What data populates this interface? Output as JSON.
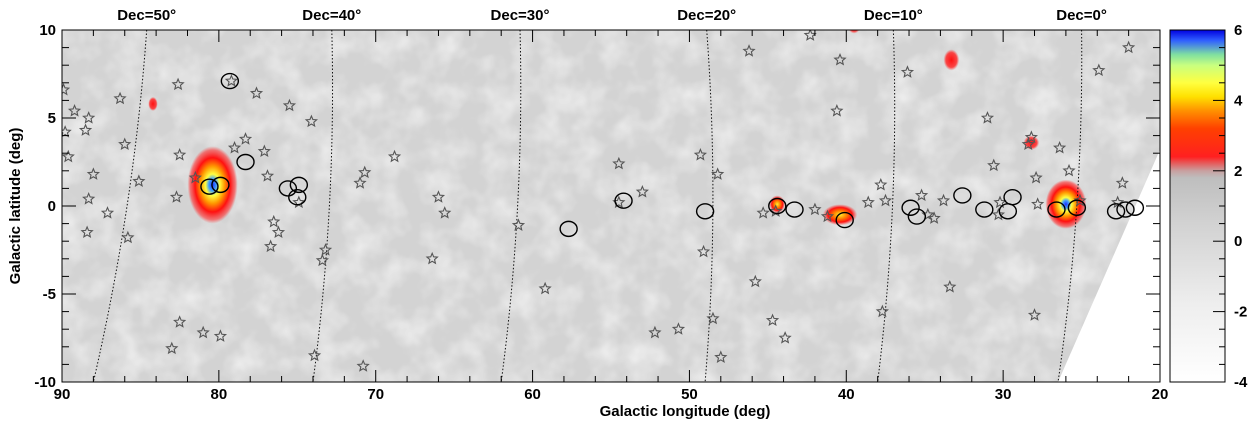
{
  "chart_data": {
    "type": "heatmap",
    "title": "",
    "xlabel": "Galactic longitude (deg)",
    "ylabel": "Galactic latitude (deg)",
    "xlim": [
      90,
      20
    ],
    "ylim": [
      -10,
      10
    ],
    "x_ticks": [
      90,
      80,
      70,
      60,
      50,
      40,
      30,
      20
    ],
    "y_ticks": [
      -10,
      -5,
      0,
      5,
      10
    ],
    "x_tick_labels": [
      "90",
      "80",
      "70",
      "60",
      "50",
      "40",
      "30",
      "20"
    ],
    "y_tick_labels": [
      "-10",
      "-5",
      "0",
      "5",
      "10"
    ],
    "dec_lines": [
      {
        "label": "Dec=50°",
        "l_top": 84.6,
        "l_bottom": 88.0
      },
      {
        "label": "Dec=40°",
        "l_top": 72.8,
        "l_bottom": 74.0
      },
      {
        "label": "Dec=30°",
        "l_top": 60.8,
        "l_bottom": 62.0
      },
      {
        "label": "Dec=20°",
        "l_top": 48.9,
        "l_bottom": 49.0
      },
      {
        "label": "Dec=10°",
        "l_top": 37.0,
        "l_bottom": 38.0
      },
      {
        "label": "Dec=0°",
        "l_top": 25.0,
        "l_bottom": 26.5
      }
    ],
    "dec_labels_at_l": [
      84.6,
      72.8,
      60.8,
      48.9,
      37.0,
      25.0
    ],
    "colorbar": {
      "ticks": [
        -4,
        -2,
        0,
        2,
        4,
        6
      ],
      "tick_labels": [
        "-4",
        "-2",
        "0",
        "2",
        "4",
        "6"
      ],
      "range": [
        -4,
        6
      ]
    },
    "hot_regions": [
      {
        "l": 80.4,
        "b": 1.2,
        "sigma": 5.8,
        "rl": 1.6,
        "rb": 2.2
      },
      {
        "l": 26.0,
        "b": 0.1,
        "sigma": 5.8,
        "rl": 1.3,
        "rb": 1.4
      },
      {
        "l": 40.4,
        "b": -0.5,
        "sigma": 3.8,
        "rl": 1.1,
        "rb": 0.6
      },
      {
        "l": 44.4,
        "b": 0.1,
        "sigma": 3.4,
        "rl": 0.5,
        "rb": 0.5
      },
      {
        "l": 39.5,
        "b": 10.2,
        "sigma": 3.2,
        "rl": 0.4,
        "rb": 0.4
      },
      {
        "l": 33.3,
        "b": 8.3,
        "sigma": 2.8,
        "rl": 0.5,
        "rb": 0.6
      },
      {
        "l": 84.2,
        "b": 5.8,
        "sigma": 2.6,
        "rl": 0.3,
        "rb": 0.4
      },
      {
        "l": 28.2,
        "b": 3.6,
        "sigma": 2.6,
        "rl": 0.5,
        "rb": 0.4
      }
    ],
    "circle_sources": [
      {
        "l": 79.3,
        "b": 7.1
      },
      {
        "l": 78.3,
        "b": 2.5
      },
      {
        "l": 80.6,
        "b": 1.1
      },
      {
        "l": 79.9,
        "b": 1.2
      },
      {
        "l": 75.6,
        "b": 1.0
      },
      {
        "l": 74.9,
        "b": 1.2
      },
      {
        "l": 75.0,
        "b": 0.5
      },
      {
        "l": 57.7,
        "b": -1.3
      },
      {
        "l": 54.2,
        "b": 0.3
      },
      {
        "l": 49.0,
        "b": -0.3
      },
      {
        "l": 44.4,
        "b": 0.0
      },
      {
        "l": 43.3,
        "b": -0.2
      },
      {
        "l": 40.1,
        "b": -0.8
      },
      {
        "l": 35.9,
        "b": -0.1
      },
      {
        "l": 35.5,
        "b": -0.6
      },
      {
        "l": 32.6,
        "b": 0.6
      },
      {
        "l": 31.2,
        "b": -0.2
      },
      {
        "l": 29.7,
        "b": -0.3
      },
      {
        "l": 29.4,
        "b": 0.5
      },
      {
        "l": 26.6,
        "b": -0.2
      },
      {
        "l": 25.3,
        "b": -0.1
      },
      {
        "l": 22.8,
        "b": -0.3
      },
      {
        "l": 22.2,
        "b": -0.2
      },
      {
        "l": 21.6,
        "b": -0.1
      }
    ],
    "star_sources": [
      {
        "l": 89.9,
        "b": 6.6
      },
      {
        "l": 89.8,
        "b": 4.2
      },
      {
        "l": 89.2,
        "b": 5.4
      },
      {
        "l": 88.5,
        "b": 4.3
      },
      {
        "l": 88.3,
        "b": 5.0
      },
      {
        "l": 89.6,
        "b": 2.8
      },
      {
        "l": 88.0,
        "b": 1.8
      },
      {
        "l": 88.3,
        "b": 0.4
      },
      {
        "l": 87.1,
        "b": -0.4
      },
      {
        "l": 88.4,
        "b": -1.5
      },
      {
        "l": 86.3,
        "b": 6.1
      },
      {
        "l": 86.0,
        "b": 3.5
      },
      {
        "l": 85.1,
        "b": 1.4
      },
      {
        "l": 85.8,
        "b": -1.8
      },
      {
        "l": 82.6,
        "b": 6.9
      },
      {
        "l": 82.5,
        "b": 2.9
      },
      {
        "l": 82.7,
        "b": 0.5
      },
      {
        "l": 81.5,
        "b": 1.6
      },
      {
        "l": 82.5,
        "b": -6.6
      },
      {
        "l": 83.0,
        "b": -8.1
      },
      {
        "l": 81.0,
        "b": -7.2
      },
      {
        "l": 79.9,
        "b": -7.4
      },
      {
        "l": 79.2,
        "b": 7.1
      },
      {
        "l": 77.6,
        "b": 6.4
      },
      {
        "l": 78.3,
        "b": 3.8
      },
      {
        "l": 79.0,
        "b": 3.3
      },
      {
        "l": 77.1,
        "b": 3.1
      },
      {
        "l": 76.9,
        "b": 1.7
      },
      {
        "l": 76.5,
        "b": -0.9
      },
      {
        "l": 76.2,
        "b": -1.5
      },
      {
        "l": 76.7,
        "b": -2.3
      },
      {
        "l": 75.5,
        "b": 5.7
      },
      {
        "l": 74.1,
        "b": 4.8
      },
      {
        "l": 74.9,
        "b": 0.2
      },
      {
        "l": 73.2,
        "b": -2.5
      },
      {
        "l": 73.4,
        "b": -3.1
      },
      {
        "l": 73.9,
        "b": -8.5
      },
      {
        "l": 70.7,
        "b": 1.9
      },
      {
        "l": 71.0,
        "b": 1.3
      },
      {
        "l": 68.8,
        "b": 2.8
      },
      {
        "l": 70.8,
        "b": -9.1
      },
      {
        "l": 66.0,
        "b": 0.5
      },
      {
        "l": 65.6,
        "b": -0.4
      },
      {
        "l": 66.4,
        "b": -3.0
      },
      {
        "l": 60.9,
        "b": -1.1
      },
      {
        "l": 59.2,
        "b": -4.7
      },
      {
        "l": 54.5,
        "b": 2.4
      },
      {
        "l": 54.5,
        "b": 0.2
      },
      {
        "l": 53.0,
        "b": 0.8
      },
      {
        "l": 52.2,
        "b": -7.2
      },
      {
        "l": 50.7,
        "b": -7.0
      },
      {
        "l": 49.3,
        "b": 2.9
      },
      {
        "l": 48.2,
        "b": 1.8
      },
      {
        "l": 49.1,
        "b": -2.6
      },
      {
        "l": 48.5,
        "b": -6.4
      },
      {
        "l": 48.0,
        "b": -8.6
      },
      {
        "l": 46.2,
        "b": 8.8
      },
      {
        "l": 45.8,
        "b": -4.3
      },
      {
        "l": 45.3,
        "b": -0.4
      },
      {
        "l": 44.5,
        "b": -0.3
      },
      {
        "l": 44.7,
        "b": -6.5
      },
      {
        "l": 43.9,
        "b": -7.5
      },
      {
        "l": 40.4,
        "b": 8.3
      },
      {
        "l": 42.3,
        "b": 9.7
      },
      {
        "l": 40.6,
        "b": 5.4
      },
      {
        "l": 42.0,
        "b": -0.2
      },
      {
        "l": 41.2,
        "b": -0.6
      },
      {
        "l": 38.6,
        "b": 0.2
      },
      {
        "l": 37.5,
        "b": 0.3
      },
      {
        "l": 37.7,
        "b": -6.0
      },
      {
        "l": 37.8,
        "b": 1.2
      },
      {
        "l": 36.1,
        "b": 7.6
      },
      {
        "l": 35.2,
        "b": 0.6
      },
      {
        "l": 34.8,
        "b": -0.5
      },
      {
        "l": 34.4,
        "b": -0.7
      },
      {
        "l": 33.8,
        "b": 0.3
      },
      {
        "l": 33.4,
        "b": -4.6
      },
      {
        "l": 31.0,
        "b": 5.0
      },
      {
        "l": 30.6,
        "b": 2.3
      },
      {
        "l": 30.2,
        "b": 0.2
      },
      {
        "l": 30.3,
        "b": -0.5
      },
      {
        "l": 28.2,
        "b": 3.9
      },
      {
        "l": 28.4,
        "b": 3.5
      },
      {
        "l": 27.9,
        "b": 1.6
      },
      {
        "l": 27.8,
        "b": 0.1
      },
      {
        "l": 28.0,
        "b": -6.2
      },
      {
        "l": 26.4,
        "b": 3.3
      },
      {
        "l": 25.8,
        "b": 2.0
      },
      {
        "l": 25.1,
        "b": 0.3
      },
      {
        "l": 23.9,
        "b": 7.7
      },
      {
        "l": 22.0,
        "b": 9.0
      },
      {
        "l": 22.4,
        "b": 1.3
      },
      {
        "l": 22.7,
        "b": 0.2
      }
    ]
  }
}
